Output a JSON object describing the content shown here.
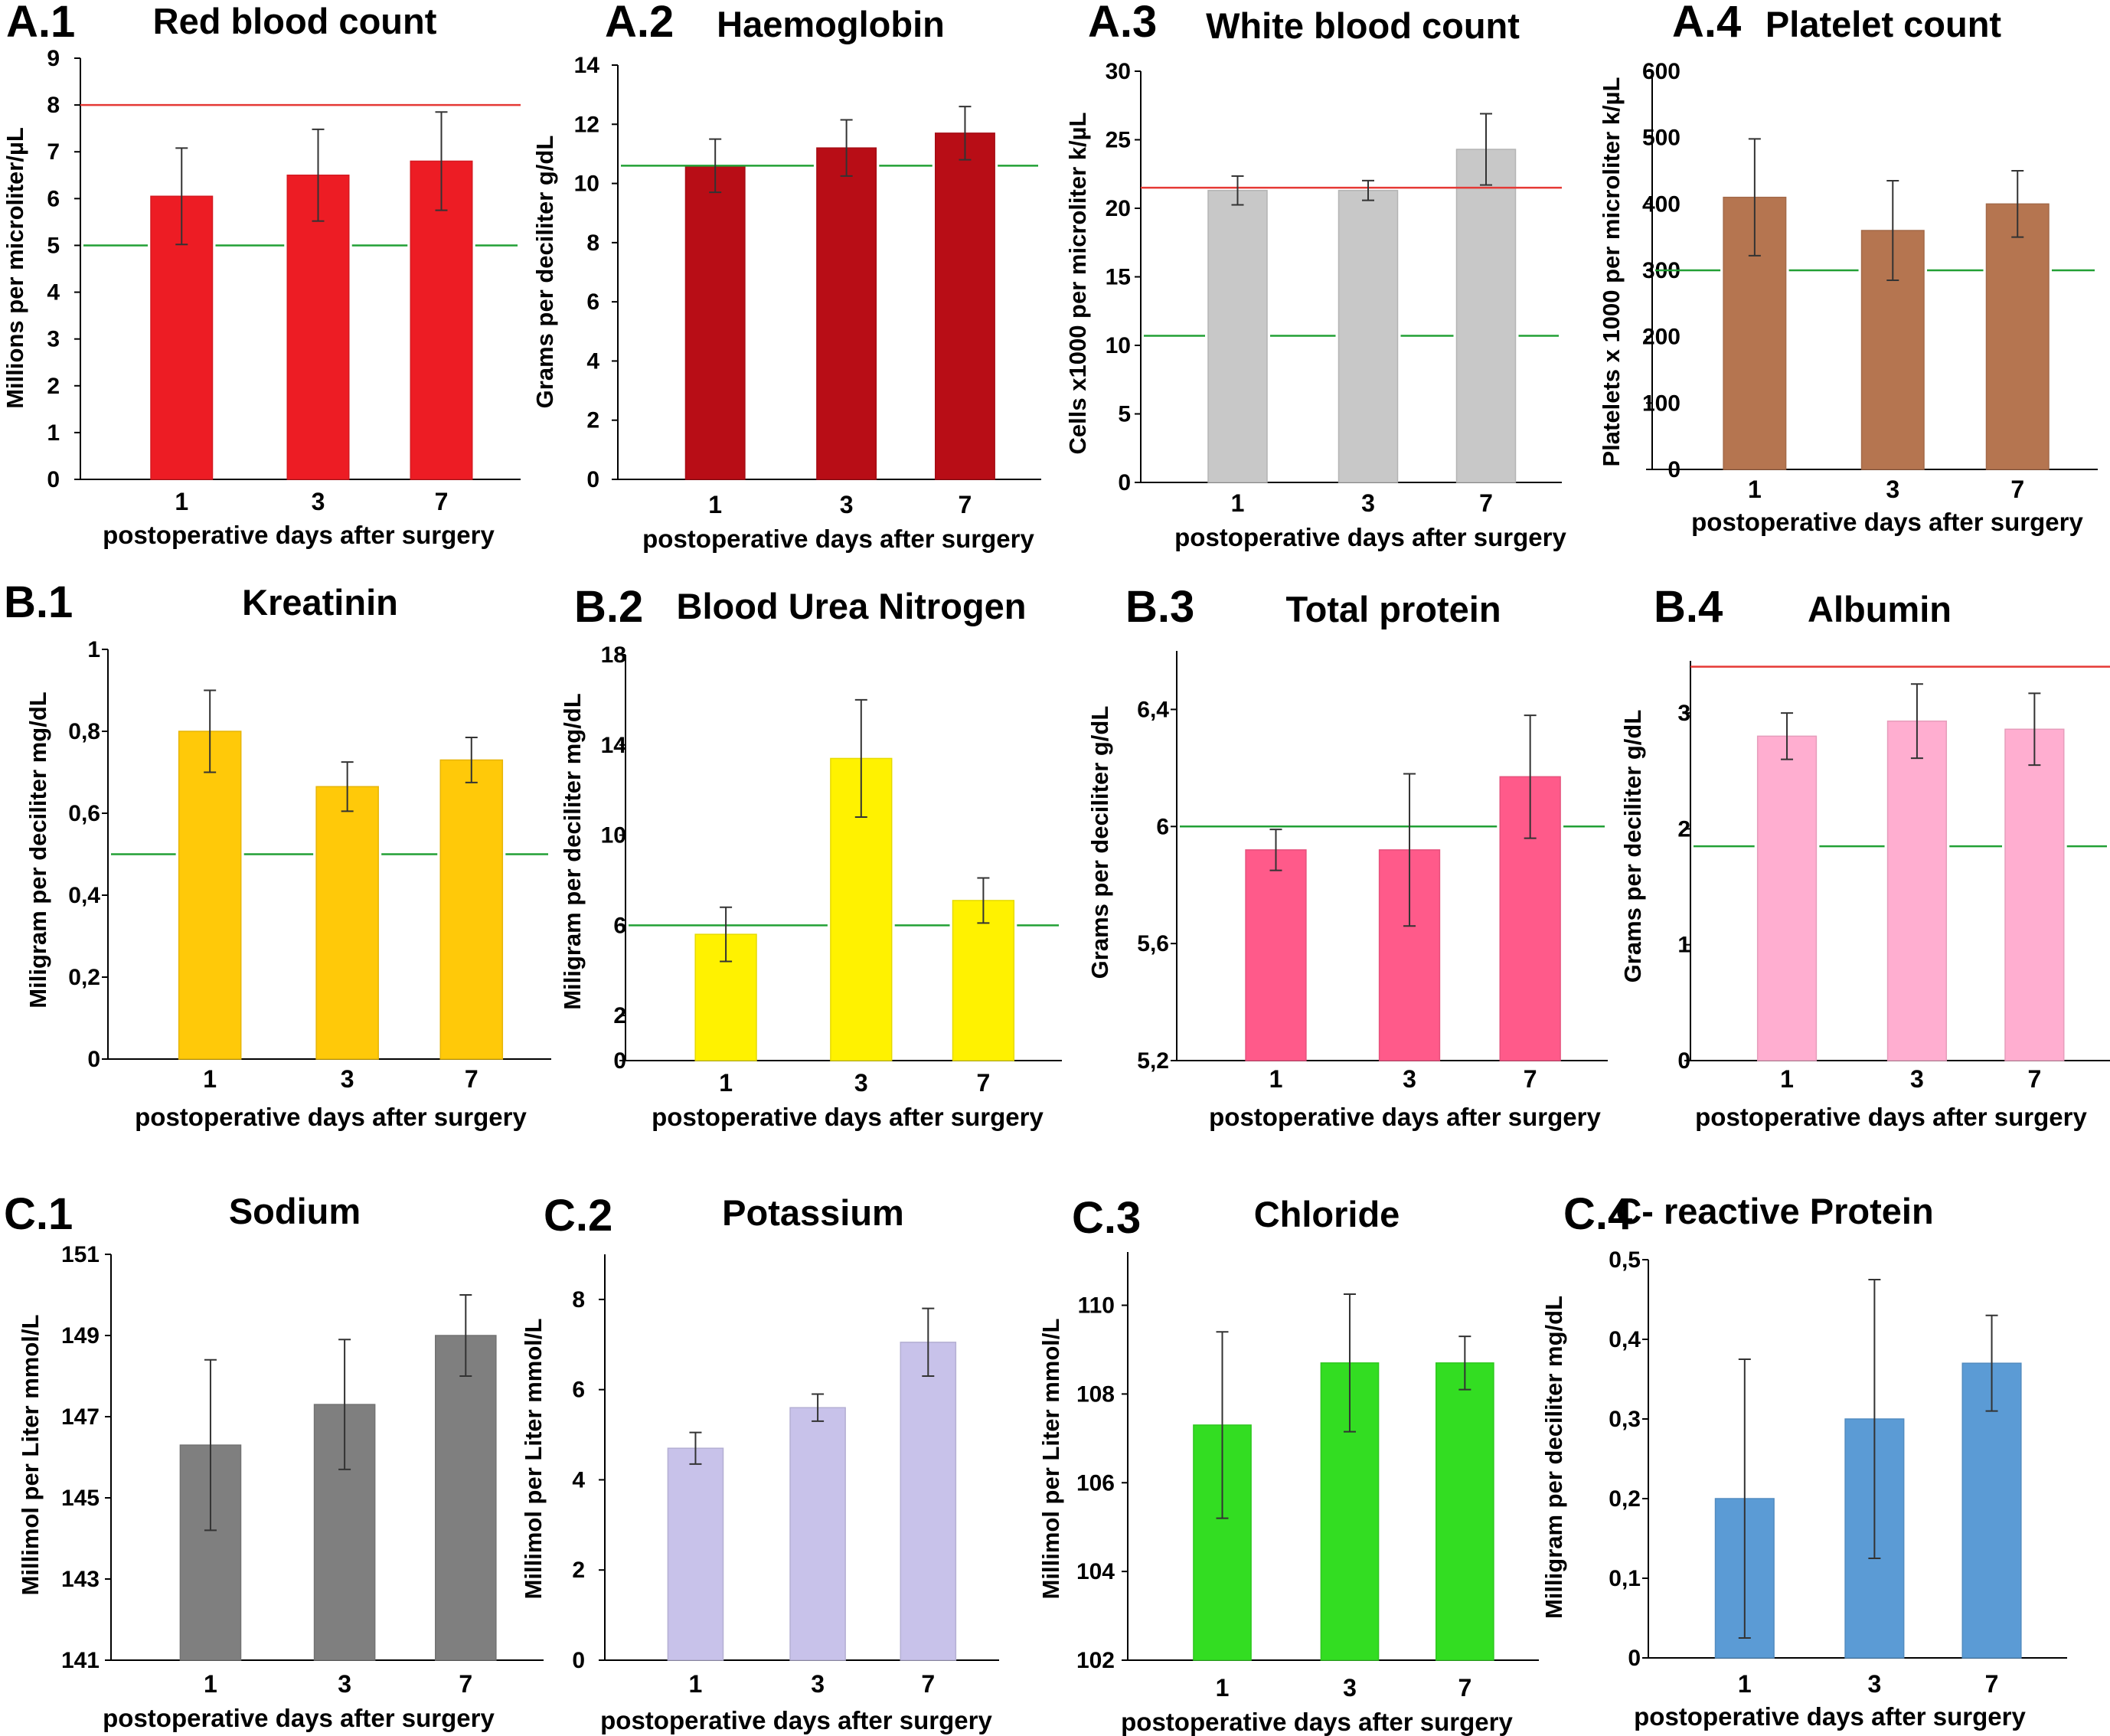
{
  "chart_data": [
    {
      "id": "A.1",
      "panel_label": "A.1",
      "type": "bar",
      "title": "Red blood count",
      "ylabel": "Millions per microliter/µL",
      "xlabel": "postoperative days after surgery",
      "categories": [
        "1",
        "3",
        "7"
      ],
      "values": [
        6.05,
        6.5,
        6.8
      ],
      "errors": [
        1.03,
        0.98,
        1.05
      ],
      "ylim": [
        0,
        9
      ],
      "yticks": [
        "0",
        "1",
        "2",
        "3",
        "4",
        "5",
        "6",
        "7",
        "8",
        "9"
      ],
      "bar_color": "#ED1C24",
      "upper_ref": 8,
      "lower_ref": 5
    },
    {
      "id": "A.2",
      "panel_label": "A.2",
      "type": "bar",
      "title": "Haemoglobin",
      "ylabel": "Grams per deciliter g/dL",
      "xlabel": "postoperative days after surgery",
      "categories": [
        "1",
        "3",
        "7"
      ],
      "values": [
        10.6,
        11.2,
        11.7
      ],
      "errors": [
        0.9,
        0.95,
        0.9
      ],
      "ylim": [
        0,
        14
      ],
      "yticks": [
        "0",
        "2",
        "4",
        "6",
        "8",
        "10",
        "12",
        "14"
      ],
      "bar_color": "#B80D16",
      "lower_ref": 10.6
    },
    {
      "id": "A.3",
      "panel_label": "A.3",
      "type": "bar",
      "title": "White blood count",
      "ylabel": "Cells x1000 per microliter  k/µL",
      "xlabel": "postoperative days after surgery",
      "categories": [
        "1",
        "3",
        "7"
      ],
      "values": [
        21.3,
        21.3,
        24.3
      ],
      "errors": [
        1.05,
        0.72,
        2.6
      ],
      "ylim": [
        0,
        30
      ],
      "yticks": [
        "0",
        "5",
        "10",
        "15",
        "20",
        "25",
        "30"
      ],
      "bar_color": "#C8C8C8",
      "upper_ref": 21.5,
      "lower_ref": 10.7
    },
    {
      "id": "A.4",
      "panel_label": "A.4",
      "type": "bar",
      "title": "Platelet count",
      "ylabel": "Platelets x 1000 per microliter k/µL",
      "xlabel": "postoperative days after surgery",
      "categories": [
        "1",
        "3",
        "7"
      ],
      "values": [
        410,
        360,
        400
      ],
      "errors": [
        88,
        75,
        50
      ],
      "ylim": [
        0,
        600
      ],
      "yticks": [
        "0",
        "100",
        "200",
        "300",
        "400",
        "500",
        "600"
      ],
      "bar_color": "#B57550",
      "lower_ref": 300
    },
    {
      "id": "B.1",
      "panel_label": "B.1",
      "type": "bar",
      "title": "Kreatinin",
      "ylabel": "Miligram per deciliter mg/dL",
      "xlabel": "postoperative days after surgery",
      "categories": [
        "1",
        "3",
        "7"
      ],
      "values": [
        0.8,
        0.665,
        0.73
      ],
      "errors": [
        0.1,
        0.06,
        0.055
      ],
      "ylim": [
        0,
        1
      ],
      "yticks": [
        "0",
        "0,2",
        "0,4",
        "0,6",
        "0,8",
        "1"
      ],
      "bar_color": "#FFC909",
      "lower_ref": 0.5
    },
    {
      "id": "B.2",
      "panel_label": "B.2",
      "type": "bar",
      "title": "Blood Urea Nitrogen",
      "ylabel": "Miligram per deciliter mg/dL",
      "xlabel": "postoperative days after surgery",
      "categories": [
        "1",
        "3",
        "7"
      ],
      "values": [
        5.6,
        13.4,
        7.1
      ],
      "errors": [
        1.2,
        2.6,
        1.0
      ],
      "ylim": [
        0,
        18
      ],
      "yticks": [
        "0",
        "2",
        "6",
        "10",
        "14",
        "18"
      ],
      "bar_color": "#FFF200",
      "lower_ref": 6
    },
    {
      "id": "B.3",
      "panel_label": "B.3",
      "type": "bar",
      "title": "Total protein",
      "ylabel": "Grams per deciliter g/dL",
      "xlabel": "postoperative days after surgery",
      "categories": [
        "1",
        "3",
        "7"
      ],
      "values": [
        5.92,
        5.92,
        6.17
      ],
      "errors": [
        0.07,
        0.26,
        0.21
      ],
      "ylim": [
        5.2,
        6.6
      ],
      "yticks": [
        "5,2",
        "5,6",
        "6",
        "6,4"
      ],
      "tick_values": [
        5.2,
        5.6,
        6.0,
        6.4
      ],
      "bar_color": "#FF5A8A",
      "lower_ref": 6.0
    },
    {
      "id": "B.4",
      "panel_label": "B.4",
      "type": "bar",
      "title": "Albumin",
      "ylabel": "Grams per deciliter g/dL",
      "xlabel": "postoperative days after surgery",
      "categories": [
        "1",
        "3",
        "7"
      ],
      "values": [
        2.8,
        2.93,
        2.86
      ],
      "errors": [
        0.2,
        0.32,
        0.31
      ],
      "ylim": [
        0,
        3.45
      ],
      "yticks": [
        "0",
        "1",
        "2",
        "3"
      ],
      "bar_color": "#FFAED0",
      "upper_ref": 3.4,
      "lower_ref": 1.85
    },
    {
      "id": "C.1",
      "panel_label": "C.1",
      "type": "bar",
      "title": "Sodium",
      "ylabel": "Millimol per Liter  mmol/L",
      "xlabel": "postoperative days after surgery",
      "categories": [
        "1",
        "3",
        "7"
      ],
      "values": [
        146.3,
        147.3,
        149
      ],
      "errors": [
        2.1,
        1.6,
        1.0
      ],
      "ylim": [
        141,
        151
      ],
      "yticks": [
        "141",
        "143",
        "145",
        "147",
        "149",
        "151"
      ],
      "bar_color": "#7F7F7F"
    },
    {
      "id": "C.2",
      "panel_label": "C.2",
      "type": "bar",
      "title": "Potassium",
      "ylabel": "Millimol per Liter  mmol/L",
      "xlabel": "postoperative days after surgery",
      "categories": [
        "1",
        "3",
        "7"
      ],
      "values": [
        4.7,
        5.6,
        7.05
      ],
      "errors": [
        0.35,
        0.3,
        0.75
      ],
      "ylim": [
        0,
        9
      ],
      "yticks": [
        "0",
        "2",
        "4",
        "6",
        "8"
      ],
      "bar_color": "#C8C2EA"
    },
    {
      "id": "C.3",
      "panel_label": "C.3",
      "type": "bar",
      "title": "Chloride",
      "ylabel": "Millimol per Liter  mmol/L",
      "xlabel": "postoperative days after surgery",
      "categories": [
        "1",
        "3",
        "7"
      ],
      "values": [
        107.3,
        108.7,
        108.7
      ],
      "errors": [
        2.1,
        1.55,
        0.6
      ],
      "ylim": [
        102,
        111.2
      ],
      "yticks": [
        "102",
        "104",
        "106",
        "108",
        "110"
      ],
      "bar_color": "#33DD22"
    },
    {
      "id": "C.4",
      "panel_label": "C.4",
      "type": "bar",
      "title": "C- reactive Protein",
      "ylabel": "Milligram per deciliter mg/dL",
      "xlabel": "postoperative days after surgery",
      "categories": [
        "1",
        "3",
        "7"
      ],
      "values": [
        0.2,
        0.3,
        0.37
      ],
      "errors": [
        0.175,
        0.175,
        0.06
      ],
      "ylim": [
        0,
        0.5
      ],
      "yticks": [
        "0",
        "0,1",
        "0,2",
        "0,3",
        "0,4",
        "0,5"
      ],
      "bar_color": "#5B9BD5"
    }
  ]
}
